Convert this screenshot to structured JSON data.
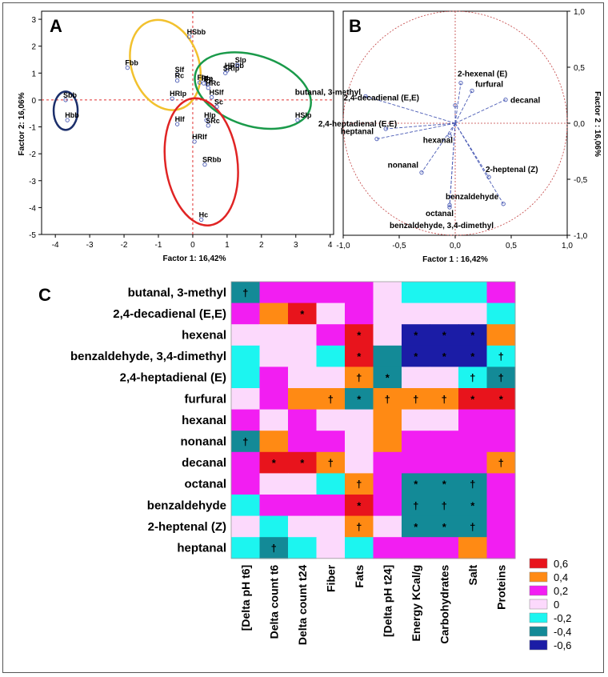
{
  "panel_a": {
    "letter": "A",
    "xlabel": "Factor 1: 16,42%",
    "ylabel": "Factor 2: 16,06%",
    "xticks": [
      -4,
      -3,
      -2,
      -1,
      0,
      1,
      2,
      3,
      4
    ],
    "yticks": [
      3,
      2,
      1,
      0,
      -1,
      -2,
      -3,
      -4,
      -5
    ],
    "xlim": [
      -4.4,
      4.1
    ],
    "ylim": [
      -5,
      3.3
    ],
    "points": [
      {
        "label": "Sbb",
        "x": -3.7,
        "y": 0.0
      },
      {
        "label": "Hbb",
        "x": -3.65,
        "y": -0.75
      },
      {
        "label": "Fbb",
        "x": -1.9,
        "y": 1.2
      },
      {
        "label": "Slf",
        "x": -0.45,
        "y": 0.95
      },
      {
        "label": "Rc",
        "x": -0.45,
        "y": 0.72
      },
      {
        "label": "HSbb",
        "x": -0.1,
        "y": 2.35
      },
      {
        "label": "HRlp",
        "x": -0.6,
        "y": 0.05
      },
      {
        "label": "Hlf",
        "x": -0.45,
        "y": -0.9
      },
      {
        "label": "HRlf",
        "x": 0.05,
        "y": -1.55
      },
      {
        "label": "SRbb",
        "x": 0.35,
        "y": -2.4
      },
      {
        "label": "Hc",
        "x": 0.25,
        "y": -4.45
      },
      {
        "label": "Hlp",
        "x": 0.4,
        "y": -0.75
      },
      {
        "label": "SRc",
        "x": 0.45,
        "y": -0.95
      },
      {
        "label": "Flp",
        "x": 0.2,
        "y": 0.65
      },
      {
        "label": "Rlp",
        "x": 0.32,
        "y": 0.62
      },
      {
        "label": "Fc",
        "x": 0.42,
        "y": 0.58
      },
      {
        "label": "HRc",
        "x": 0.45,
        "y": 0.45
      },
      {
        "label": "HSlf",
        "x": 0.55,
        "y": 0.1
      },
      {
        "label": "Sc",
        "x": 0.7,
        "y": -0.25
      },
      {
        "label": "HRbb",
        "x": 1.0,
        "y": 1.1
      },
      {
        "label": "SRlp",
        "x": 0.95,
        "y": 1.0
      },
      {
        "label": "Slp",
        "x": 1.3,
        "y": 1.3
      },
      {
        "label": "HSlp",
        "x": 3.05,
        "y": -0.75
      }
    ],
    "ellipse_colors": [
      "#f2c12e",
      "#1a9a4a",
      "#e02424",
      "#1c2f6b"
    ]
  },
  "panel_b": {
    "letter": "B",
    "xlabel": "Factor 1 : 16,42%",
    "ylabel": "Factor 2 : 16,06%",
    "xticks": [
      "-1,0",
      "-0,5",
      "0,0",
      "0,5",
      "1,0"
    ],
    "yticks": [
      "1,0",
      "0,5",
      "0,0",
      "-0,5",
      "-1,0"
    ],
    "vectors": [
      {
        "label": "butanal, 3-methyl",
        "x": -0.8,
        "y": 0.24
      },
      {
        "label": "2-hexenal (E)",
        "x": 0.05,
        "y": 0.36
      },
      {
        "label": "furfural",
        "x": 0.15,
        "y": 0.29
      },
      {
        "label": "decanal",
        "x": 0.45,
        "y": 0.21
      },
      {
        "label": "2,4-decadienal (E,E)",
        "x": 0.0,
        "y": 0.16
      },
      {
        "label": "2,4-heptadienal (E,E)",
        "x": -0.62,
        "y": -0.05
      },
      {
        "label": "heptanal",
        "x": -0.7,
        "y": -0.14
      },
      {
        "label": "hexanal",
        "x": -0.05,
        "y": -0.11
      },
      {
        "label": "nonanal",
        "x": -0.3,
        "y": -0.44
      },
      {
        "label": "2-heptenal (Z)",
        "x": 0.3,
        "y": -0.48
      },
      {
        "label": "benzaldehyde",
        "x": 0.43,
        "y": -0.72
      },
      {
        "label": "octanal",
        "x": -0.05,
        "y": -0.73
      },
      {
        "label": "benzaldehyde, 3,4-dimethyl",
        "x": -0.05,
        "y": -0.75
      }
    ]
  },
  "panel_c": {
    "letter": "C",
    "rows": [
      "butanal, 3-methyl",
      "2,4-decadienal (E,E)",
      "hexenal",
      "benzaldehyde, 3,4-dimethyl",
      "2,4-heptadienal (E)",
      "furfural",
      "hexanal",
      "nonanal",
      "decanal",
      "octanal",
      "benzaldehyde",
      "2-heptenal (Z)",
      "heptanal"
    ],
    "columns": [
      "[Delta pH t6]",
      "Delta count t6",
      "Delta count t24",
      "Fiber",
      "Fats",
      "[Delta pH t24]",
      "Energy KCal/g",
      "Carbohydrates",
      "Salt",
      "Proteins"
    ],
    "values": [
      [
        -0.3,
        0.25,
        0.25,
        0.25,
        0.25,
        0.1,
        -0.2,
        -0.2,
        -0.2,
        0.25
      ],
      [
        0.25,
        0.45,
        0.65,
        0.1,
        0.2,
        0.1,
        0.1,
        0.1,
        0.1,
        -0.2
      ],
      [
        0.1,
        -0.1,
        -0.1,
        0.2,
        0.6,
        0.1,
        -0.55,
        -0.55,
        -0.5,
        0.45
      ],
      [
        -0.2,
        -0.1,
        -0.1,
        -0.2,
        0.75,
        -0.35,
        -0.55,
        -0.55,
        -0.65,
        -0.2
      ],
      [
        -0.2,
        0.2,
        -0.1,
        -0.1,
        0.5,
        -0.35,
        -0.1,
        -0.1,
        -0.2,
        -0.35
      ],
      [
        0.1,
        0.2,
        0.45,
        0.45,
        -0.4,
        0.4,
        0.45,
        0.45,
        0.6,
        0.6
      ],
      [
        0.25,
        -0.1,
        0.2,
        0.1,
        0.1,
        0.45,
        0.1,
        0.1,
        0.2,
        0.25
      ],
      [
        -0.3,
        0.45,
        0.25,
        0.25,
        -0.1,
        0.45,
        0.2,
        0.2,
        0.25,
        0.25
      ],
      [
        0.25,
        0.65,
        0.65,
        0.45,
        -0.1,
        0.25,
        0.25,
        0.25,
        0.25,
        0.45
      ],
      [
        0.25,
        -0.1,
        0.1,
        -0.2,
        0.45,
        0.25,
        -0.35,
        -0.35,
        -0.35,
        0.25
      ],
      [
        -0.2,
        0.25,
        0.25,
        0.25,
        0.65,
        0.2,
        -0.35,
        -0.35,
        -0.4,
        0.25
      ],
      [
        0.1,
        -0.2,
        -0.1,
        -0.1,
        0.45,
        -0.1,
        -0.35,
        -0.35,
        -0.35,
        0.2
      ],
      [
        -0.2,
        -0.35,
        -0.2,
        -0.1,
        -0.2,
        0.2,
        0.25,
        0.25,
        0.45,
        0.2
      ]
    ],
    "marks": [
      [
        "†",
        "",
        "",
        "",
        "",
        "",
        "",
        "",
        "",
        ""
      ],
      [
        "",
        "",
        "*",
        "",
        "",
        "",
        "",
        "",
        "",
        ""
      ],
      [
        "",
        "",
        "",
        "",
        "*",
        "",
        "*",
        "*",
        "*",
        ""
      ],
      [
        "",
        "",
        "",
        "",
        "*",
        "",
        "*",
        "*",
        "*",
        "†"
      ],
      [
        "",
        "",
        "",
        "",
        "†",
        "*",
        "",
        "",
        "†",
        "†"
      ],
      [
        "",
        "",
        "",
        "†",
        "*",
        "†",
        "†",
        "†",
        "*",
        "*"
      ],
      [
        "",
        "",
        "",
        "",
        "",
        "",
        "",
        "",
        "",
        ""
      ],
      [
        "†",
        "",
        "",
        "",
        "",
        "",
        "",
        "",
        "",
        ""
      ],
      [
        "",
        "*",
        "*",
        "†",
        "",
        "",
        "",
        "",
        "",
        "†"
      ],
      [
        "",
        "",
        "",
        "",
        "†",
        "",
        "*",
        "*",
        "†",
        ""
      ],
      [
        "",
        "",
        "",
        "",
        "*",
        "",
        "†",
        "†",
        "*",
        ""
      ],
      [
        "",
        "",
        "",
        "",
        "†",
        "",
        "*",
        "*",
        "†",
        ""
      ],
      [
        "",
        "†",
        "",
        "",
        "",
        "",
        "",
        "",
        "",
        ""
      ]
    ],
    "legend": [
      {
        "label": "0,6",
        "color": "#e8141c"
      },
      {
        "label": "0,4",
        "color": "#ff8a14"
      },
      {
        "label": "0,2",
        "color": "#f21ef2"
      },
      {
        "label": "0",
        "color": "#fcd9fc"
      },
      {
        "label": "-0,2",
        "color": "#1cf5f0"
      },
      {
        "label": "-0,4",
        "color": "#138a97"
      },
      {
        "label": "-0,6",
        "color": "#1b1ca6"
      }
    ]
  }
}
